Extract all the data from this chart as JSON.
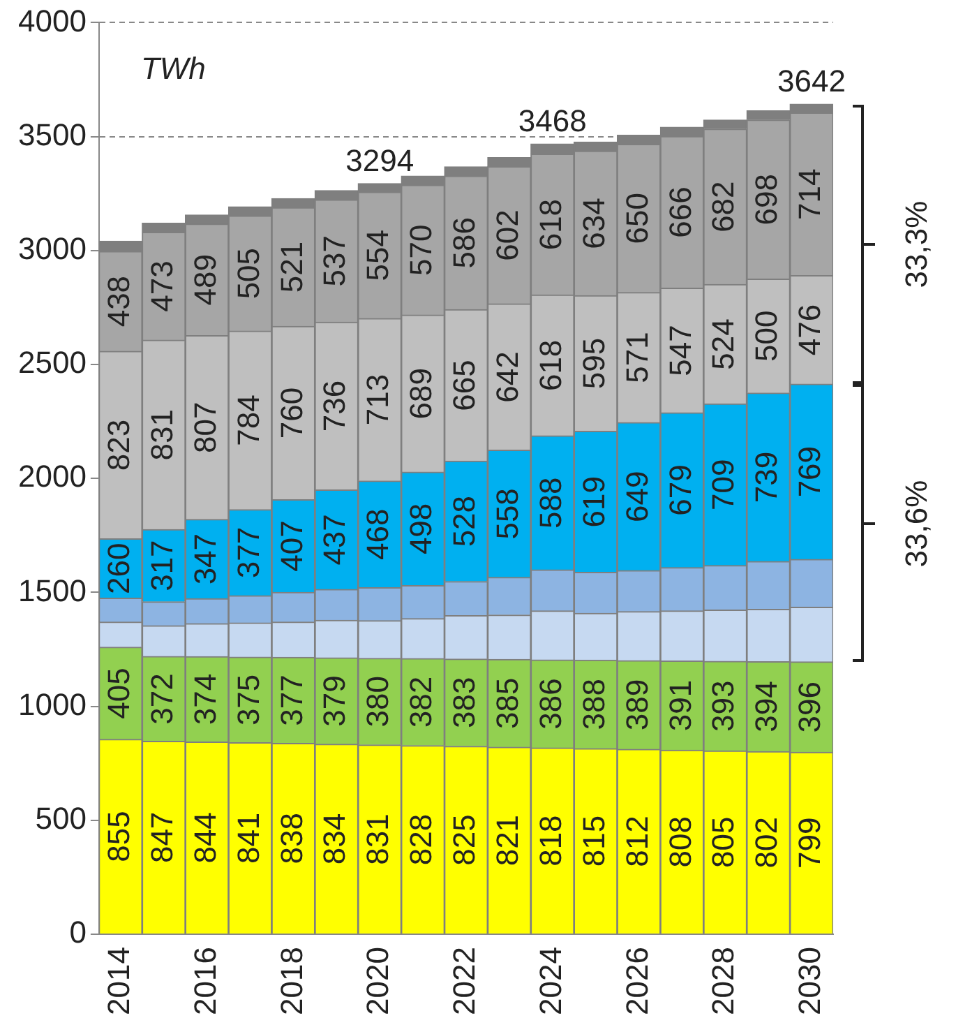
{
  "chart_data": {
    "type": "bar",
    "stacked": true,
    "ylabel": "TWh",
    "categories": [
      "2014",
      null,
      "2016",
      null,
      "2018",
      null,
      "2020",
      null,
      "2022",
      null,
      "2024",
      null,
      "2026",
      null,
      "2028",
      null,
      "2030"
    ],
    "ylim": [
      0,
      4000
    ],
    "yticks": [
      0,
      500,
      1000,
      1500,
      2000,
      2500,
      3000,
      3500,
      4000
    ],
    "grid": "y",
    "line_style": "dashed",
    "legend": false,
    "series": [
      {
        "color": "#ffff00",
        "values": [
          855,
          847,
          844,
          841,
          838,
          834,
          831,
          828,
          825,
          821,
          818,
          815,
          812,
          808,
          805,
          802,
          799
        ],
        "value_labels": [
          "855",
          "847",
          "844",
          "841",
          "838",
          "834",
          "831",
          "828",
          "825",
          "821",
          "818",
          "815",
          "812",
          "808",
          "805",
          "802",
          "799"
        ]
      },
      {
        "color": "#92d050",
        "values": [
          405,
          372,
          374,
          375,
          377,
          379,
          380,
          382,
          383,
          385,
          386,
          388,
          389,
          391,
          393,
          394,
          396
        ],
        "value_labels": [
          "405",
          "372",
          "374",
          "375",
          "377",
          "379",
          "380",
          "382",
          "383",
          "385",
          "386",
          "388",
          "389",
          "391",
          "393",
          "394",
          "396"
        ]
      },
      {
        "color": "#c6d9f1",
        "values": [
          110,
          135,
          145,
          150,
          155,
          165,
          165,
          175,
          190,
          195,
          215,
          205,
          215,
          220,
          225,
          230,
          240
        ]
      },
      {
        "color": "#8db4e2",
        "values": [
          105,
          105,
          110,
          120,
          130,
          135,
          145,
          145,
          150,
          165,
          180,
          180,
          180,
          190,
          195,
          210,
          210
        ]
      },
      {
        "color": "#00b0f0",
        "values": [
          260,
          317,
          347,
          377,
          407,
          437,
          468,
          498,
          528,
          558,
          588,
          619,
          649,
          679,
          709,
          739,
          769
        ],
        "value_labels": [
          "260",
          "317",
          "347",
          "377",
          "407",
          "437",
          "468",
          "498",
          "528",
          "558",
          "588",
          "619",
          "649",
          "679",
          "709",
          "739",
          "769"
        ]
      },
      {
        "color": "#bfbfbf",
        "values": [
          823,
          831,
          807,
          784,
          760,
          736,
          713,
          689,
          665,
          642,
          618,
          595,
          571,
          547,
          524,
          500,
          476
        ],
        "value_labels": [
          "823",
          "831",
          "807",
          "784",
          "760",
          "736",
          "713",
          "689",
          "665",
          "642",
          "618",
          "595",
          "571",
          "547",
          "524",
          "500",
          "476"
        ]
      },
      {
        "color": "#a6a6a6",
        "values": [
          438,
          473,
          489,
          505,
          521,
          537,
          554,
          570,
          586,
          602,
          618,
          634,
          650,
          666,
          682,
          698,
          714
        ],
        "value_labels": [
          "438",
          "473",
          "489",
          "505",
          "521",
          "537",
          "554",
          "570",
          "586",
          "602",
          "618",
          "634",
          "650",
          "666",
          "682",
          "698",
          "714"
        ]
      },
      {
        "color": "#7f7f7f",
        "values": [
          45,
          40,
          40,
          40,
          40,
          40,
          38,
          40,
          40,
          40,
          45,
          40,
          40,
          40,
          40,
          40,
          38
        ]
      }
    ],
    "annotations": [
      {
        "text": "3294",
        "x": "2020",
        "y": 3294
      },
      {
        "text": "3468",
        "x": "2024",
        "y": 3468
      },
      {
        "text": "3642",
        "x": "2030",
        "y": 3642
      },
      "33,3%",
      "33,6%"
    ]
  }
}
